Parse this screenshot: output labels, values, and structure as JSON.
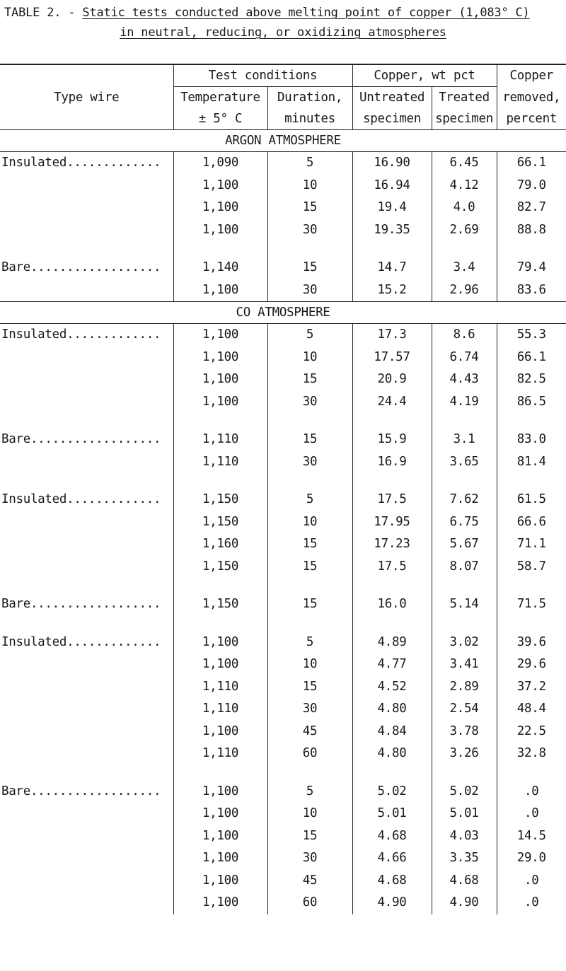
{
  "caption": {
    "prefix": "TABLE 2. - ",
    "title_line1": "Static tests conducted above melting point of copper (1,083° C)",
    "title_line2": "in neutral, reducing, or oxidizing atmospheres"
  },
  "header": {
    "type_wire": "Type wire",
    "test_conditions": "Test conditions",
    "temperature": "Temperature",
    "temperature_unit": "± 5° C",
    "duration": "Duration,",
    "duration_unit": "minutes",
    "copper_wt": "Copper, wt pct",
    "untreated": "Untreated",
    "untreated_2": "specimen",
    "treated": "Treated",
    "treated_2": "specimen",
    "removed_1": "Copper",
    "removed_2": "removed,",
    "removed_3": "percent"
  },
  "sections": [
    {
      "title": "ARGON ATMOSPHERE",
      "groups": [
        {
          "type": "Insulated.............",
          "rows": [
            [
              "1,090",
              "5",
              "16.90",
              "6.45",
              "66.1"
            ],
            [
              "1,100",
              "10",
              "16.94",
              "4.12",
              "79.0"
            ],
            [
              "1,100",
              "15",
              "19.4",
              "4.0",
              "82.7"
            ],
            [
              "1,100",
              "30",
              "19.35",
              "2.69",
              "88.8"
            ]
          ]
        },
        {
          "type": "Bare..................",
          "rows": [
            [
              "1,140",
              "15",
              "14.7",
              "3.4",
              "79.4"
            ],
            [
              "1,100",
              "30",
              "15.2",
              "2.96",
              "83.6"
            ]
          ]
        }
      ]
    },
    {
      "title": "CO ATMOSPHERE",
      "groups": [
        {
          "type": "Insulated.............",
          "rows": [
            [
              "1,100",
              "5",
              "17.3",
              "8.6",
              "55.3"
            ],
            [
              "1,100",
              "10",
              "17.57",
              "6.74",
              "66.1"
            ],
            [
              "1,100",
              "15",
              "20.9",
              "4.43",
              "82.5"
            ],
            [
              "1,100",
              "30",
              "24.4",
              "4.19",
              "86.5"
            ]
          ]
        },
        {
          "type": "Bare..................",
          "rows": [
            [
              "1,110",
              "15",
              "15.9",
              "3.1",
              "83.0"
            ],
            [
              "1,110",
              "30",
              "16.9",
              "3.65",
              "81.4"
            ]
          ]
        },
        {
          "type": "Insulated.............",
          "rows": [
            [
              "1,150",
              "5",
              "17.5",
              "7.62",
              "61.5"
            ],
            [
              "1,150",
              "10",
              "17.95",
              "6.75",
              "66.6"
            ],
            [
              "1,160",
              "15",
              "17.23",
              "5.67",
              "71.1"
            ],
            [
              "1,150",
              "15",
              "17.5",
              "8.07",
              "58.7"
            ]
          ]
        },
        {
          "type": "Bare..................",
          "rows": [
            [
              "1,150",
              "15",
              "16.0",
              "5.14",
              "71.5"
            ]
          ]
        },
        {
          "type": "Insulated.............",
          "rows": [
            [
              "1,100",
              "5",
              "4.89",
              "3.02",
              "39.6"
            ],
            [
              "1,100",
              "10",
              "4.77",
              "3.41",
              "29.6"
            ],
            [
              "1,110",
              "15",
              "4.52",
              "2.89",
              "37.2"
            ],
            [
              "1,110",
              "30",
              "4.80",
              "2.54",
              "48.4"
            ],
            [
              "1,100",
              "45",
              "4.84",
              "3.78",
              "22.5"
            ],
            [
              "1,110",
              "60",
              "4.80",
              "3.26",
              "32.8"
            ]
          ]
        },
        {
          "type": "Bare..................",
          "rows": [
            [
              "1,100",
              "5",
              "5.02",
              "5.02",
              ".0"
            ],
            [
              "1,100",
              "10",
              "5.01",
              "5.01",
              ".0"
            ],
            [
              "1,100",
              "15",
              "4.68",
              "4.03",
              "14.5"
            ],
            [
              "1,100",
              "30",
              "4.66",
              "3.35",
              "29.0"
            ],
            [
              "1,100",
              "45",
              "4.68",
              "4.68",
              ".0"
            ],
            [
              "1,100",
              "60",
              "4.90",
              "4.90",
              ".0"
            ]
          ]
        }
      ]
    }
  ]
}
